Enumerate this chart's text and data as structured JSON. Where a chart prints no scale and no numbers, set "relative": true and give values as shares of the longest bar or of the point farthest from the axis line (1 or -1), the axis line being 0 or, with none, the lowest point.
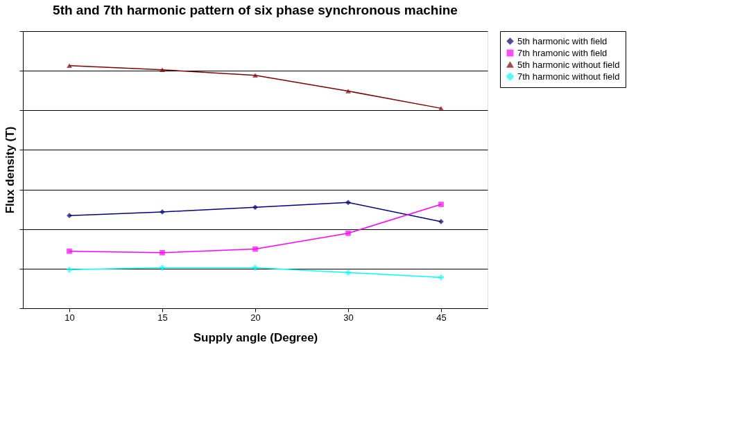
{
  "chart_data": {
    "type": "line",
    "title": "5th and 7th harmonic pattern of six phase synchronous machine",
    "xlabel": "Supply angle (Degree)",
    "ylabel": "Flux density (T)",
    "relative": true,
    "grid": "y",
    "legend": "right",
    "categories": [
      "10",
      "15",
      "20",
      "30",
      "45"
    ],
    "series": [
      {
        "name": "5th harmonic with field",
        "color": "#000080",
        "marker": "diamond",
        "values": [
          0.382,
          0.397,
          0.416,
          0.436,
          0.357
        ]
      },
      {
        "name": "7th hramonic with field",
        "color": "#ff00ff",
        "marker": "square",
        "values": [
          0.235,
          0.229,
          0.244,
          0.309,
          0.428
        ]
      },
      {
        "name": "5th harmonic without field",
        "color": "#800000",
        "marker": "triangle",
        "values": [
          1,
          0.983,
          0.96,
          0.895,
          0.824
        ]
      },
      {
        "name": "7th harmonic without field",
        "color": "#00ffff",
        "marker": "cross",
        "values": [
          0.159,
          0.167,
          0.167,
          0.147,
          0.127
        ]
      }
    ]
  }
}
